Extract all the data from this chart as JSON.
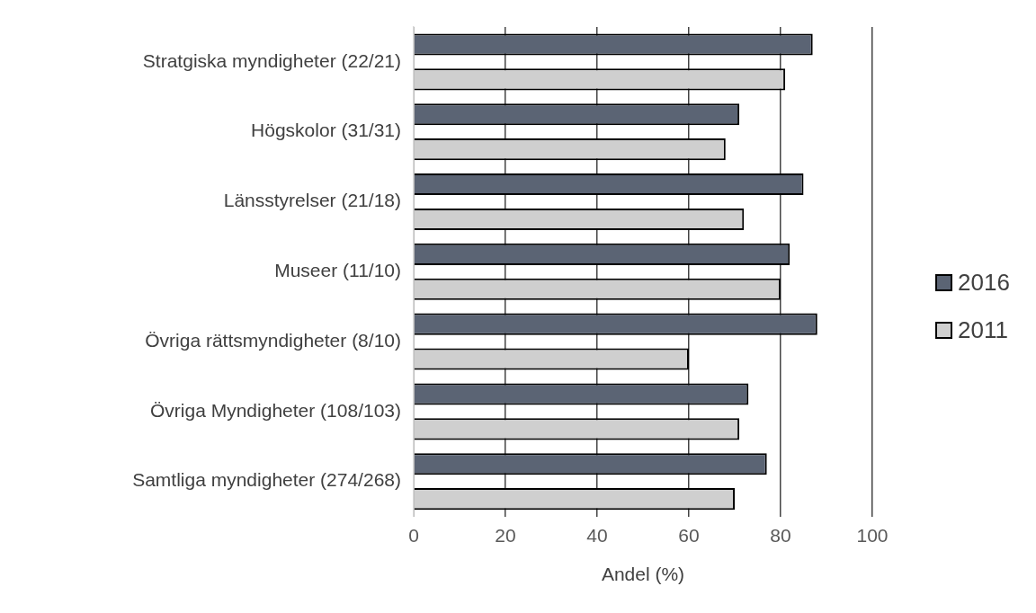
{
  "chart_data": {
    "type": "bar",
    "orientation": "horizontal",
    "xlabel": "Andel (%)",
    "categories": [
      "Stratgiska myndigheter (22/21)",
      "Högskolor (31/31)",
      "Länsstyrelser (21/18)",
      "Museer (11/10)",
      "Övriga rättsmyndigheter (8/10)",
      "Övriga Myndigheter (108/103)",
      "Samtliga myndigheter (274/268)"
    ],
    "series": [
      {
        "name": "2016",
        "color": "#5b6474",
        "values": [
          87,
          71,
          85,
          82,
          88,
          73,
          77
        ]
      },
      {
        "name": "2011",
        "color": "#cfcfcf",
        "values": [
          81,
          68,
          72,
          80,
          60,
          71,
          70
        ]
      }
    ],
    "xlim": [
      0,
      100
    ],
    "xticks": [
      0,
      20,
      40,
      60,
      80,
      100
    ],
    "grid": "x",
    "legend": "right"
  }
}
